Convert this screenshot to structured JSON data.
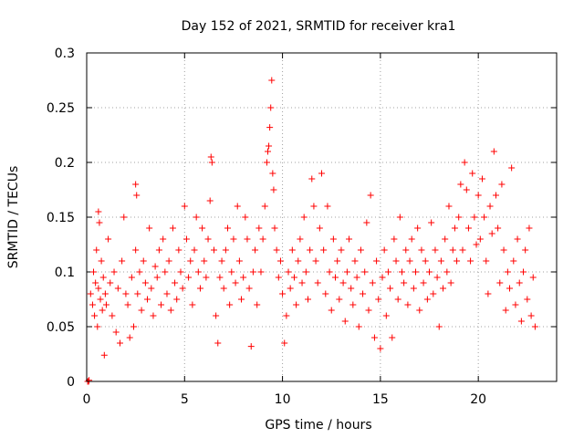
{
  "chart_data": {
    "type": "scatter",
    "title": "Day 152 of 2021, SRMTID for receiver kra1",
    "xlabel": "GPS time / hours",
    "ylabel": "SRMTID / TECUs",
    "xlim": [
      0,
      24
    ],
    "ylim": [
      0,
      0.3
    ],
    "xticks": [
      0,
      5,
      10,
      15,
      20
    ],
    "xtick_labels": [
      "0",
      "5",
      "10",
      "15",
      "20"
    ],
    "yticks": [
      0,
      0.05,
      0.1,
      0.15,
      0.2,
      0.25,
      0.3
    ],
    "ytick_labels": [
      "0",
      "0.05",
      "0.1",
      "0.15",
      "0.2",
      "0.25",
      "0.3"
    ],
    "grid": true,
    "marker": "+",
    "color": "#ff0000",
    "series": [
      {
        "name": "SRMTID",
        "points": [
          [
            0.05,
            0.0
          ],
          [
            0.1,
            0.0
          ],
          [
            0.12,
            0.001
          ],
          [
            0.2,
            0.08
          ],
          [
            0.3,
            0.07
          ],
          [
            0.35,
            0.1
          ],
          [
            0.4,
            0.06
          ],
          [
            0.45,
            0.09
          ],
          [
            0.5,
            0.12
          ],
          [
            0.55,
            0.05
          ],
          [
            0.6,
            0.085
          ],
          [
            0.6,
            0.155
          ],
          [
            0.65,
            0.145
          ],
          [
            0.7,
            0.075
          ],
          [
            0.75,
            0.11
          ],
          [
            0.8,
            0.065
          ],
          [
            0.85,
            0.095
          ],
          [
            0.9,
            0.024
          ],
          [
            0.95,
            0.08
          ],
          [
            1.0,
            0.07
          ],
          [
            1.1,
            0.13
          ],
          [
            1.2,
            0.09
          ],
          [
            1.3,
            0.06
          ],
          [
            1.4,
            0.1
          ],
          [
            1.5,
            0.045
          ],
          [
            1.6,
            0.085
          ],
          [
            1.7,
            0.035
          ],
          [
            1.8,
            0.11
          ],
          [
            1.9,
            0.15
          ],
          [
            2.0,
            0.08
          ],
          [
            2.1,
            0.07
          ],
          [
            2.2,
            0.04
          ],
          [
            2.3,
            0.095
          ],
          [
            2.4,
            0.05
          ],
          [
            2.5,
            0.12
          ],
          [
            2.5,
            0.18
          ],
          [
            2.55,
            0.17
          ],
          [
            2.6,
            0.08
          ],
          [
            2.7,
            0.1
          ],
          [
            2.8,
            0.065
          ],
          [
            2.9,
            0.11
          ],
          [
            3.0,
            0.09
          ],
          [
            3.1,
            0.075
          ],
          [
            3.2,
            0.14
          ],
          [
            3.3,
            0.085
          ],
          [
            3.4,
            0.06
          ],
          [
            3.5,
            0.105
          ],
          [
            3.6,
            0.095
          ],
          [
            3.7,
            0.12
          ],
          [
            3.8,
            0.07
          ],
          [
            3.9,
            0.13
          ],
          [
            4.0,
            0.1
          ],
          [
            4.1,
            0.08
          ],
          [
            4.2,
            0.11
          ],
          [
            4.3,
            0.065
          ],
          [
            4.4,
            0.14
          ],
          [
            4.5,
            0.09
          ],
          [
            4.6,
            0.075
          ],
          [
            4.7,
            0.12
          ],
          [
            4.8,
            0.1
          ],
          [
            4.9,
            0.085
          ],
          [
            5.0,
            0.16
          ],
          [
            5.1,
            0.13
          ],
          [
            5.2,
            0.095
          ],
          [
            5.3,
            0.11
          ],
          [
            5.4,
            0.07
          ],
          [
            5.5,
            0.12
          ],
          [
            5.6,
            0.15
          ],
          [
            5.7,
            0.1
          ],
          [
            5.8,
            0.085
          ],
          [
            5.9,
            0.14
          ],
          [
            6.0,
            0.11
          ],
          [
            6.1,
            0.095
          ],
          [
            6.2,
            0.13
          ],
          [
            6.3,
            0.165
          ],
          [
            6.35,
            0.205
          ],
          [
            6.4,
            0.2
          ],
          [
            6.5,
            0.12
          ],
          [
            6.6,
            0.06
          ],
          [
            6.7,
            0.035
          ],
          [
            6.8,
            0.095
          ],
          [
            6.9,
            0.11
          ],
          [
            7.0,
            0.085
          ],
          [
            7.1,
            0.12
          ],
          [
            7.2,
            0.14
          ],
          [
            7.3,
            0.07
          ],
          [
            7.4,
            0.1
          ],
          [
            7.5,
            0.13
          ],
          [
            7.6,
            0.09
          ],
          [
            7.7,
            0.16
          ],
          [
            7.8,
            0.11
          ],
          [
            7.9,
            0.075
          ],
          [
            8.0,
            0.095
          ],
          [
            8.1,
            0.15
          ],
          [
            8.2,
            0.13
          ],
          [
            8.3,
            0.085
          ],
          [
            8.4,
            0.032
          ],
          [
            8.5,
            0.1
          ],
          [
            8.6,
            0.12
          ],
          [
            8.7,
            0.07
          ],
          [
            8.8,
            0.14
          ],
          [
            8.9,
            0.1
          ],
          [
            9.0,
            0.13
          ],
          [
            9.1,
            0.16
          ],
          [
            9.2,
            0.2
          ],
          [
            9.25,
            0.21
          ],
          [
            9.3,
            0.215
          ],
          [
            9.35,
            0.232
          ],
          [
            9.4,
            0.25
          ],
          [
            9.45,
            0.275
          ],
          [
            9.5,
            0.19
          ],
          [
            9.55,
            0.175
          ],
          [
            9.6,
            0.14
          ],
          [
            9.7,
            0.12
          ],
          [
            9.8,
            0.095
          ],
          [
            9.9,
            0.11
          ],
          [
            10.0,
            0.08
          ],
          [
            10.1,
            0.035
          ],
          [
            10.2,
            0.06
          ],
          [
            10.3,
            0.1
          ],
          [
            10.4,
            0.085
          ],
          [
            10.5,
            0.12
          ],
          [
            10.6,
            0.095
          ],
          [
            10.7,
            0.07
          ],
          [
            10.8,
            0.11
          ],
          [
            10.9,
            0.13
          ],
          [
            11.0,
            0.09
          ],
          [
            11.1,
            0.15
          ],
          [
            11.2,
            0.1
          ],
          [
            11.3,
            0.075
          ],
          [
            11.4,
            0.12
          ],
          [
            11.5,
            0.185
          ],
          [
            11.6,
            0.16
          ],
          [
            11.7,
            0.11
          ],
          [
            11.8,
            0.09
          ],
          [
            11.9,
            0.14
          ],
          [
            12.0,
            0.19
          ],
          [
            12.1,
            0.12
          ],
          [
            12.2,
            0.08
          ],
          [
            12.3,
            0.16
          ],
          [
            12.4,
            0.1
          ],
          [
            12.5,
            0.065
          ],
          [
            12.6,
            0.13
          ],
          [
            12.7,
            0.095
          ],
          [
            12.8,
            0.11
          ],
          [
            12.9,
            0.075
          ],
          [
            13.0,
            0.12
          ],
          [
            13.1,
            0.09
          ],
          [
            13.2,
            0.055
          ],
          [
            13.3,
            0.1
          ],
          [
            13.4,
            0.13
          ],
          [
            13.5,
            0.085
          ],
          [
            13.6,
            0.07
          ],
          [
            13.7,
            0.11
          ],
          [
            13.8,
            0.095
          ],
          [
            13.9,
            0.05
          ],
          [
            14.0,
            0.12
          ],
          [
            14.1,
            0.08
          ],
          [
            14.2,
            0.1
          ],
          [
            14.3,
            0.145
          ],
          [
            14.4,
            0.065
          ],
          [
            14.5,
            0.17
          ],
          [
            14.6,
            0.09
          ],
          [
            14.7,
            0.04
          ],
          [
            14.8,
            0.11
          ],
          [
            14.9,
            0.075
          ],
          [
            15.0,
            0.03
          ],
          [
            15.1,
            0.095
          ],
          [
            15.2,
            0.12
          ],
          [
            15.3,
            0.06
          ],
          [
            15.4,
            0.1
          ],
          [
            15.5,
            0.085
          ],
          [
            15.6,
            0.04
          ],
          [
            15.7,
            0.13
          ],
          [
            15.8,
            0.11
          ],
          [
            15.9,
            0.075
          ],
          [
            16.0,
            0.15
          ],
          [
            16.1,
            0.1
          ],
          [
            16.2,
            0.09
          ],
          [
            16.3,
            0.12
          ],
          [
            16.4,
            0.07
          ],
          [
            16.5,
            0.11
          ],
          [
            16.6,
            0.13
          ],
          [
            16.7,
            0.085
          ],
          [
            16.8,
            0.1
          ],
          [
            16.9,
            0.14
          ],
          [
            17.0,
            0.065
          ],
          [
            17.1,
            0.12
          ],
          [
            17.2,
            0.09
          ],
          [
            17.3,
            0.11
          ],
          [
            17.4,
            0.075
          ],
          [
            17.5,
            0.1
          ],
          [
            17.6,
            0.145
          ],
          [
            17.7,
            0.08
          ],
          [
            17.8,
            0.12
          ],
          [
            17.9,
            0.095
          ],
          [
            18.0,
            0.05
          ],
          [
            18.1,
            0.11
          ],
          [
            18.2,
            0.085
          ],
          [
            18.3,
            0.13
          ],
          [
            18.4,
            0.1
          ],
          [
            18.5,
            0.16
          ],
          [
            18.6,
            0.09
          ],
          [
            18.7,
            0.12
          ],
          [
            18.8,
            0.14
          ],
          [
            18.9,
            0.11
          ],
          [
            19.0,
            0.15
          ],
          [
            19.1,
            0.18
          ],
          [
            19.2,
            0.12
          ],
          [
            19.3,
            0.2
          ],
          [
            19.4,
            0.175
          ],
          [
            19.5,
            0.14
          ],
          [
            19.6,
            0.11
          ],
          [
            19.7,
            0.19
          ],
          [
            19.8,
            0.15
          ],
          [
            19.9,
            0.125
          ],
          [
            20.0,
            0.17
          ],
          [
            20.1,
            0.13
          ],
          [
            20.2,
            0.185
          ],
          [
            20.3,
            0.15
          ],
          [
            20.4,
            0.11
          ],
          [
            20.5,
            0.08
          ],
          [
            20.6,
            0.16
          ],
          [
            20.7,
            0.135
          ],
          [
            20.8,
            0.21
          ],
          [
            20.9,
            0.17
          ],
          [
            21.0,
            0.14
          ],
          [
            21.1,
            0.09
          ],
          [
            21.2,
            0.18
          ],
          [
            21.3,
            0.12
          ],
          [
            21.4,
            0.065
          ],
          [
            21.5,
            0.1
          ],
          [
            21.6,
            0.085
          ],
          [
            21.7,
            0.195
          ],
          [
            21.8,
            0.11
          ],
          [
            21.9,
            0.07
          ],
          [
            22.0,
            0.13
          ],
          [
            22.1,
            0.09
          ],
          [
            22.2,
            0.055
          ],
          [
            22.3,
            0.1
          ],
          [
            22.4,
            0.12
          ],
          [
            22.5,
            0.075
          ],
          [
            22.6,
            0.14
          ],
          [
            22.7,
            0.06
          ],
          [
            22.8,
            0.095
          ],
          [
            22.9,
            0.05
          ]
        ]
      }
    ]
  }
}
